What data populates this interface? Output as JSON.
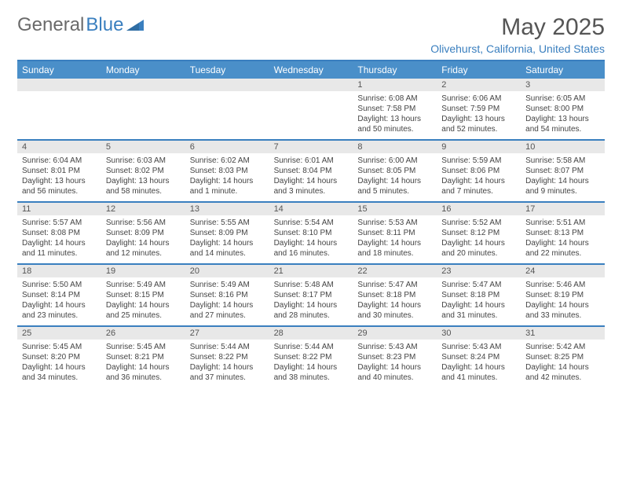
{
  "brand": {
    "text1": "General",
    "text2": "Blue"
  },
  "title": "May 2025",
  "location": "Olivehurst, California, United States",
  "colors": {
    "header_bg": "#4a8fc9",
    "header_text": "#ffffff",
    "border": "#3a7fbf",
    "daynum_bg": "#e8e8e8",
    "body_text": "#444444",
    "title_text": "#555555",
    "location_text": "#3a7fbf",
    "logo_gray": "#6a6a6a",
    "logo_blue": "#3a7fbf"
  },
  "weekday_labels": [
    "Sunday",
    "Monday",
    "Tuesday",
    "Wednesday",
    "Thursday",
    "Friday",
    "Saturday"
  ],
  "weeks": [
    [
      null,
      null,
      null,
      null,
      {
        "n": "1",
        "sr": "Sunrise: 6:08 AM",
        "ss": "Sunset: 7:58 PM",
        "d1": "Daylight: 13 hours",
        "d2": "and 50 minutes."
      },
      {
        "n": "2",
        "sr": "Sunrise: 6:06 AM",
        "ss": "Sunset: 7:59 PM",
        "d1": "Daylight: 13 hours",
        "d2": "and 52 minutes."
      },
      {
        "n": "3",
        "sr": "Sunrise: 6:05 AM",
        "ss": "Sunset: 8:00 PM",
        "d1": "Daylight: 13 hours",
        "d2": "and 54 minutes."
      }
    ],
    [
      {
        "n": "4",
        "sr": "Sunrise: 6:04 AM",
        "ss": "Sunset: 8:01 PM",
        "d1": "Daylight: 13 hours",
        "d2": "and 56 minutes."
      },
      {
        "n": "5",
        "sr": "Sunrise: 6:03 AM",
        "ss": "Sunset: 8:02 PM",
        "d1": "Daylight: 13 hours",
        "d2": "and 58 minutes."
      },
      {
        "n": "6",
        "sr": "Sunrise: 6:02 AM",
        "ss": "Sunset: 8:03 PM",
        "d1": "Daylight: 14 hours",
        "d2": "and 1 minute."
      },
      {
        "n": "7",
        "sr": "Sunrise: 6:01 AM",
        "ss": "Sunset: 8:04 PM",
        "d1": "Daylight: 14 hours",
        "d2": "and 3 minutes."
      },
      {
        "n": "8",
        "sr": "Sunrise: 6:00 AM",
        "ss": "Sunset: 8:05 PM",
        "d1": "Daylight: 14 hours",
        "d2": "and 5 minutes."
      },
      {
        "n": "9",
        "sr": "Sunrise: 5:59 AM",
        "ss": "Sunset: 8:06 PM",
        "d1": "Daylight: 14 hours",
        "d2": "and 7 minutes."
      },
      {
        "n": "10",
        "sr": "Sunrise: 5:58 AM",
        "ss": "Sunset: 8:07 PM",
        "d1": "Daylight: 14 hours",
        "d2": "and 9 minutes."
      }
    ],
    [
      {
        "n": "11",
        "sr": "Sunrise: 5:57 AM",
        "ss": "Sunset: 8:08 PM",
        "d1": "Daylight: 14 hours",
        "d2": "and 11 minutes."
      },
      {
        "n": "12",
        "sr": "Sunrise: 5:56 AM",
        "ss": "Sunset: 8:09 PM",
        "d1": "Daylight: 14 hours",
        "d2": "and 12 minutes."
      },
      {
        "n": "13",
        "sr": "Sunrise: 5:55 AM",
        "ss": "Sunset: 8:09 PM",
        "d1": "Daylight: 14 hours",
        "d2": "and 14 minutes."
      },
      {
        "n": "14",
        "sr": "Sunrise: 5:54 AM",
        "ss": "Sunset: 8:10 PM",
        "d1": "Daylight: 14 hours",
        "d2": "and 16 minutes."
      },
      {
        "n": "15",
        "sr": "Sunrise: 5:53 AM",
        "ss": "Sunset: 8:11 PM",
        "d1": "Daylight: 14 hours",
        "d2": "and 18 minutes."
      },
      {
        "n": "16",
        "sr": "Sunrise: 5:52 AM",
        "ss": "Sunset: 8:12 PM",
        "d1": "Daylight: 14 hours",
        "d2": "and 20 minutes."
      },
      {
        "n": "17",
        "sr": "Sunrise: 5:51 AM",
        "ss": "Sunset: 8:13 PM",
        "d1": "Daylight: 14 hours",
        "d2": "and 22 minutes."
      }
    ],
    [
      {
        "n": "18",
        "sr": "Sunrise: 5:50 AM",
        "ss": "Sunset: 8:14 PM",
        "d1": "Daylight: 14 hours",
        "d2": "and 23 minutes."
      },
      {
        "n": "19",
        "sr": "Sunrise: 5:49 AM",
        "ss": "Sunset: 8:15 PM",
        "d1": "Daylight: 14 hours",
        "d2": "and 25 minutes."
      },
      {
        "n": "20",
        "sr": "Sunrise: 5:49 AM",
        "ss": "Sunset: 8:16 PM",
        "d1": "Daylight: 14 hours",
        "d2": "and 27 minutes."
      },
      {
        "n": "21",
        "sr": "Sunrise: 5:48 AM",
        "ss": "Sunset: 8:17 PM",
        "d1": "Daylight: 14 hours",
        "d2": "and 28 minutes."
      },
      {
        "n": "22",
        "sr": "Sunrise: 5:47 AM",
        "ss": "Sunset: 8:18 PM",
        "d1": "Daylight: 14 hours",
        "d2": "and 30 minutes."
      },
      {
        "n": "23",
        "sr": "Sunrise: 5:47 AM",
        "ss": "Sunset: 8:18 PM",
        "d1": "Daylight: 14 hours",
        "d2": "and 31 minutes."
      },
      {
        "n": "24",
        "sr": "Sunrise: 5:46 AM",
        "ss": "Sunset: 8:19 PM",
        "d1": "Daylight: 14 hours",
        "d2": "and 33 minutes."
      }
    ],
    [
      {
        "n": "25",
        "sr": "Sunrise: 5:45 AM",
        "ss": "Sunset: 8:20 PM",
        "d1": "Daylight: 14 hours",
        "d2": "and 34 minutes."
      },
      {
        "n": "26",
        "sr": "Sunrise: 5:45 AM",
        "ss": "Sunset: 8:21 PM",
        "d1": "Daylight: 14 hours",
        "d2": "and 36 minutes."
      },
      {
        "n": "27",
        "sr": "Sunrise: 5:44 AM",
        "ss": "Sunset: 8:22 PM",
        "d1": "Daylight: 14 hours",
        "d2": "and 37 minutes."
      },
      {
        "n": "28",
        "sr": "Sunrise: 5:44 AM",
        "ss": "Sunset: 8:22 PM",
        "d1": "Daylight: 14 hours",
        "d2": "and 38 minutes."
      },
      {
        "n": "29",
        "sr": "Sunrise: 5:43 AM",
        "ss": "Sunset: 8:23 PM",
        "d1": "Daylight: 14 hours",
        "d2": "and 40 minutes."
      },
      {
        "n": "30",
        "sr": "Sunrise: 5:43 AM",
        "ss": "Sunset: 8:24 PM",
        "d1": "Daylight: 14 hours",
        "d2": "and 41 minutes."
      },
      {
        "n": "31",
        "sr": "Sunrise: 5:42 AM",
        "ss": "Sunset: 8:25 PM",
        "d1": "Daylight: 14 hours",
        "d2": "and 42 minutes."
      }
    ]
  ]
}
